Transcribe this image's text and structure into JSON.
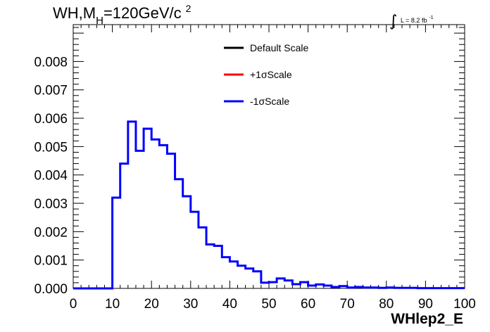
{
  "chart_data": {
    "type": "line",
    "histogram": true,
    "title": "WH,M",
    "title_sub": "H",
    "title_rest": "=120GeV/c",
    "title_sup": "2",
    "lumi_prefix": "L = 8.2 fb",
    "lumi_sup": "-1",
    "xlabel": "WHlep2_E",
    "ylabel": "",
    "xlim": [
      0,
      100
    ],
    "ylim": [
      0,
      0.0093
    ],
    "xticks": [
      0,
      10,
      20,
      30,
      40,
      50,
      60,
      70,
      80,
      90,
      100
    ],
    "xtick_labels": [
      "0",
      "10",
      "20",
      "30",
      "40",
      "50",
      "60",
      "70",
      "80",
      "90",
      "100"
    ],
    "yticks": [
      0,
      0.001,
      0.002,
      0.003,
      0.004,
      0.005,
      0.006,
      0.007,
      0.008
    ],
    "ytick_labels": [
      "0.000",
      "0.001",
      "0.002",
      "0.003",
      "0.004",
      "0.005",
      "0.006",
      "0.007",
      "0.008"
    ],
    "bin_width": 2,
    "bin_edges_start": 0,
    "legend": [
      {
        "label": "Default Scale",
        "color": "#000000"
      },
      {
        "label": "+1σScale",
        "color": "#ff0000"
      },
      {
        "label": "-1σScale",
        "color": "#0000ff"
      }
    ],
    "series": [
      {
        "name": "-1σScale",
        "color": "#0000ff",
        "values": [
          0,
          0,
          0,
          0,
          0,
          0.0032,
          0.0044,
          0.00588,
          0.00485,
          0.00563,
          0.00525,
          0.00505,
          0.00475,
          0.00385,
          0.00325,
          0.0027,
          0.00215,
          0.00155,
          0.0015,
          0.0011,
          0.00095,
          0.0008,
          0.0007,
          0.0006,
          0.0002,
          0.00022,
          0.00035,
          0.00028,
          0.00015,
          0.00022,
          0.0001,
          0.00014,
          0.0001,
          5e-05,
          8e-05,
          3e-05,
          5e-05,
          3e-05,
          3e-05,
          2e-05,
          3e-05,
          2e-05,
          2e-05,
          2e-05,
          1e-05,
          1e-05,
          1e-05,
          1e-05,
          1e-05,
          1e-05
        ]
      }
    ]
  }
}
